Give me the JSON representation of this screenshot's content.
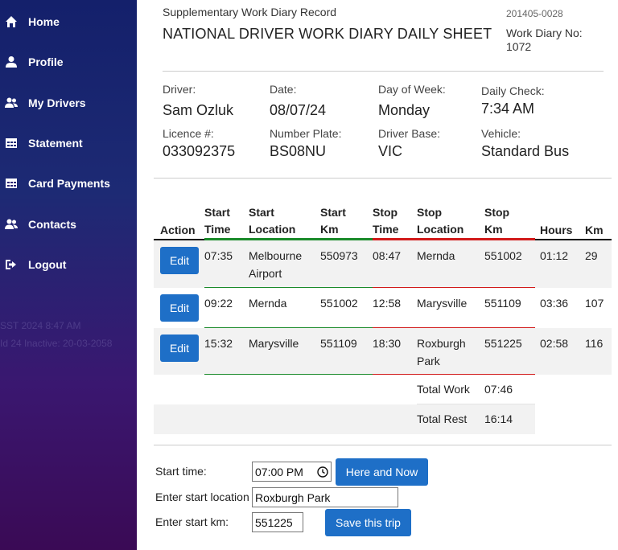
{
  "sidebar": {
    "items": [
      {
        "label": "Home",
        "icon": "home-icon"
      },
      {
        "label": "Profile",
        "icon": "user-icon"
      },
      {
        "label": "My Drivers",
        "icon": "users-icon"
      },
      {
        "label": "Statement",
        "icon": "table-icon"
      },
      {
        "label": "Card Payments",
        "icon": "table-icon"
      },
      {
        "label": "Contacts",
        "icon": "users-icon"
      },
      {
        "label": "Logout",
        "icon": "logout-icon"
      }
    ],
    "ghost_text_1": "SST 2024 8:47 AM",
    "ghost_text_2": "Id 24 Inactive: 20-03-2058"
  },
  "header": {
    "subtitle": "Supplementary Work Diary Record",
    "title": "NATIONAL DRIVER WORK DIARY DAILY SHEET",
    "code": "201405-0028",
    "work_diary_label": "Work Diary No:",
    "work_diary_no": "1072"
  },
  "details": {
    "driver_label": "Driver:",
    "driver": "Sam Ozluk",
    "date_label": "Date:",
    "date": "08/07/24",
    "dow_label": "Day of Week:",
    "dow": "Monday",
    "check_label": "Daily Check:",
    "check": "7:34 AM",
    "licence_label": "Licence #:",
    "licence": "033092375",
    "plate_label": "Number Plate:",
    "plate": "BS08NU",
    "base_label": "Driver Base:",
    "base": "VIC",
    "vehicle_label": "Vehicle:",
    "vehicle": "Standard Bus"
  },
  "table": {
    "headers": {
      "action": "Action",
      "start_time_1": "Start",
      "start_time_2": "Time",
      "start_loc_1": "Start",
      "start_loc_2": "Location",
      "start_km_1": "Start",
      "start_km_2": "Km",
      "stop_time_1": "Stop",
      "stop_time_2": "Time",
      "stop_loc_1": "Stop",
      "stop_loc_2": "Location",
      "stop_km_1": "Stop",
      "stop_km_2": "Km",
      "hours": "Hours",
      "km": "Km"
    },
    "edit_label": "Edit",
    "rows": [
      {
        "start_time": "07:35",
        "start_loc": "Melbourne Airport",
        "start_km": "550973",
        "stop_time": "08:47",
        "stop_loc": "Mernda",
        "stop_km": "551002",
        "hours": "01:12",
        "km": "29"
      },
      {
        "start_time": "09:22",
        "start_loc": "Mernda",
        "start_km": "551002",
        "stop_time": "12:58",
        "stop_loc": "Marysville",
        "stop_km": "551109",
        "hours": "03:36",
        "km": "107"
      },
      {
        "start_time": "15:32",
        "start_loc": "Marysville",
        "start_km": "551109",
        "stop_time": "18:30",
        "stop_loc": "Roxburgh Park",
        "stop_km": "551225",
        "hours": "02:58",
        "km": "116"
      }
    ],
    "total_work_label": "Total Work",
    "total_work": "07:46",
    "total_rest_label": "Total Rest",
    "total_rest": "16:14"
  },
  "form": {
    "start_time_label": "Start time:",
    "start_time_value": "07:00 PM",
    "here_now_label": "Here and Now",
    "start_loc_label": "Enter start location",
    "start_loc_value": "Roxburgh Park",
    "start_km_label": "Enter start km:",
    "start_km_value": "551225",
    "save_label": "Save this trip"
  },
  "colors": {
    "accent": "#1e6fc7",
    "start_line": "#1a8a2a",
    "stop_line": "#d11a1a",
    "header_line": "#111111"
  }
}
